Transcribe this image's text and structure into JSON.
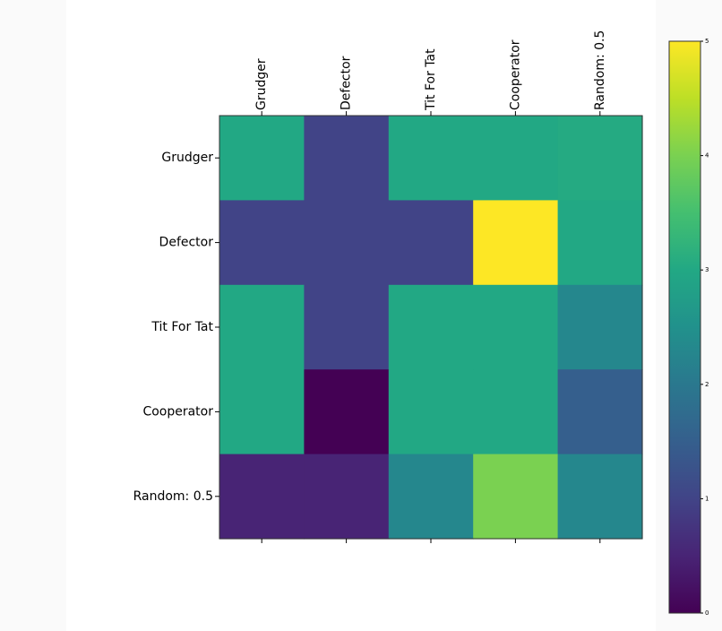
{
  "chart_data": {
    "type": "heatmap",
    "title": "",
    "row_labels": [
      "Grudger",
      "Defector",
      "Tit For Tat",
      "Cooperator",
      "Random: 0.5"
    ],
    "col_labels": [
      "Grudger",
      "Defector",
      "Tit For Tat",
      "Cooperator",
      "Random: 0.5"
    ],
    "values": [
      [
        3.0,
        1.0,
        3.0,
        3.0,
        3.05
      ],
      [
        1.0,
        1.0,
        1.0,
        5.0,
        3.0
      ],
      [
        3.0,
        1.0,
        3.0,
        3.0,
        2.3
      ],
      [
        3.0,
        0.0,
        3.0,
        3.0,
        1.5
      ],
      [
        0.5,
        0.5,
        2.3,
        4.0,
        2.3
      ]
    ],
    "colormap": "viridis",
    "vmin": 0,
    "vmax": 5,
    "colorbar": {
      "ticks": [
        0,
        1,
        2,
        3,
        4,
        5
      ],
      "tick_labels": [
        "0",
        "1",
        "2",
        "3",
        "4",
        "5"
      ],
      "placement": "right"
    }
  }
}
